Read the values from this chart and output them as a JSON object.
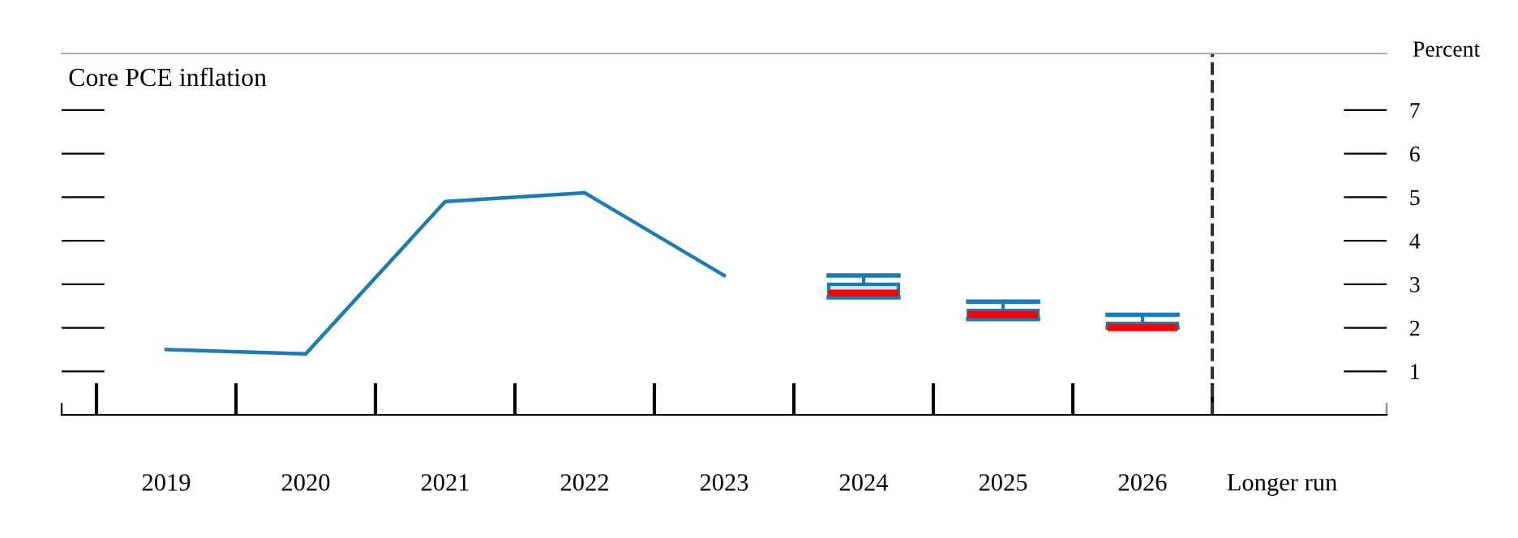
{
  "chart_data": {
    "type": "box",
    "title": "Core PCE inflation",
    "ylabel": "Percent",
    "categories": [
      "2019",
      "2020",
      "2021",
      "2022",
      "2023",
      "2024",
      "2025",
      "2026",
      "Longer run"
    ],
    "series": [
      {
        "type": "line",
        "color": "#1b7bb3",
        "values": [
          1.5,
          1.4,
          4.9,
          5.1,
          3.2,
          null,
          null,
          null,
          null
        ]
      },
      {
        "color": "#1b7bb3",
        "boxes": [
          null,
          null,
          null,
          null,
          null,
          {
            "low": 2.7,
            "q1": 2.75,
            "median": 2.8,
            "q3": 3.0,
            "high": 3.2
          },
          {
            "low": 2.2,
            "q1": 2.25,
            "median": 2.3,
            "q3": 2.4,
            "high": 2.6
          },
          {
            "low": 2.0,
            "q1": 2.0,
            "median": 2.0,
            "q3": 2.1,
            "high": 2.3
          },
          null
        ]
      }
    ],
    "ylim": [
      0,
      8.3
    ],
    "yticks": [
      1,
      2,
      3,
      4,
      5,
      6,
      7
    ],
    "grid": false,
    "legend": false
  }
}
